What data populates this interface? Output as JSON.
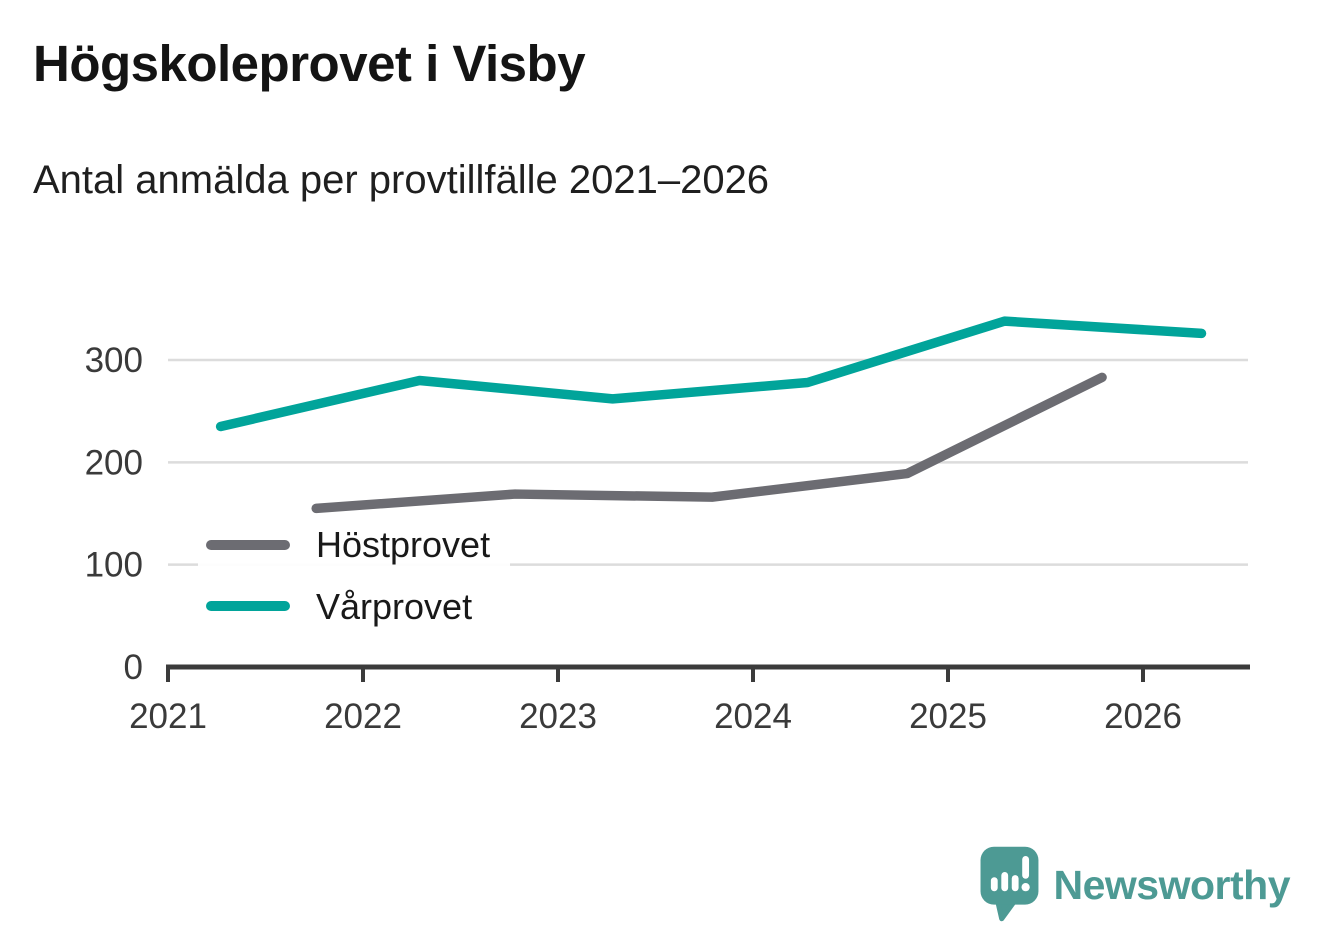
{
  "header": {
    "title": "Högskoleprovet i Visby",
    "subtitle": "Antal anmälda per provtillfälle 2021–2026"
  },
  "chart_data": {
    "type": "line",
    "title": "Högskoleprovet i Visby",
    "subtitle": "Antal anmälda per provtillfälle 2021–2026",
    "xlabel": "",
    "ylabel": "",
    "x_tick_labels": [
      "2021",
      "2022",
      "2023",
      "2024",
      "2025",
      "2026"
    ],
    "x_tick_values": [
      2021,
      2022,
      2023,
      2024,
      2025,
      2026
    ],
    "y_tick_labels": [
      "0",
      "100",
      "200",
      "300"
    ],
    "y_tick_values": [
      0,
      100,
      200,
      300
    ],
    "xlim": [
      2021,
      2026.55
    ],
    "ylim": [
      0,
      349
    ],
    "grid": "horizontal",
    "legend_position": "inside-bottom-left",
    "series": [
      {
        "name": "Höstprovet",
        "color": "#6c6c72",
        "x": [
          2021.76,
          2022.78,
          2023.79,
          2024.79,
          2025.79
        ],
        "values": [
          155,
          169,
          166,
          189,
          283
        ]
      },
      {
        "name": "Vårprovet",
        "color": "#01a49a",
        "x": [
          2021.27,
          2022.29,
          2023.28,
          2024.28,
          2025.29,
          2026.3
        ],
        "values": [
          235,
          280,
          262,
          278,
          338,
          326
        ]
      }
    ]
  },
  "legend": {
    "items": [
      {
        "label": "Höstprovet"
      },
      {
        "label": "Vårprovet"
      }
    ]
  },
  "branding": {
    "logo_text": "Newsworthy",
    "logo_color": "#4d9a94",
    "icon": "newsworthy-speech-bubble-bar-chart-icon"
  },
  "colors": {
    "background": "#ffffff",
    "gridline": "#dcdcdc",
    "axis": "#3b3b3b",
    "tick_label": "#3a3a3a"
  }
}
